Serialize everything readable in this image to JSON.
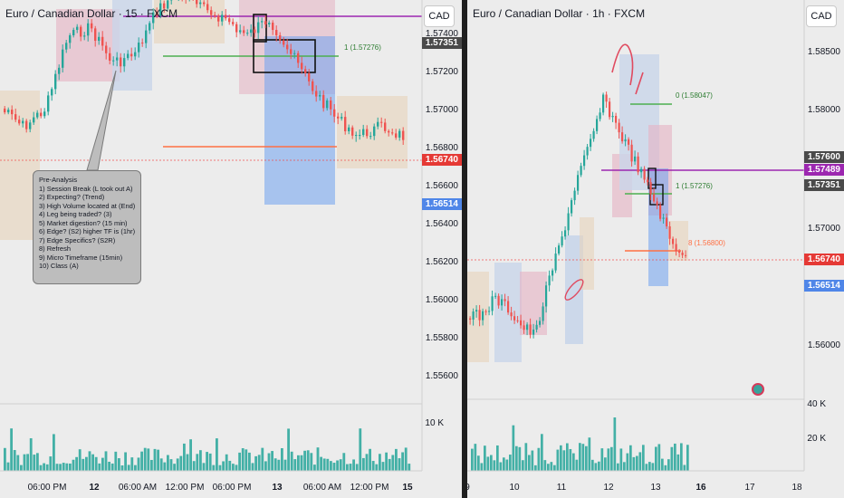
{
  "left_chart": {
    "title": "Euro / Canadian Dollar · 15 · FXCM",
    "currency": "CAD",
    "price_axis": [
      "1.57400",
      "1.57200",
      "1.57000",
      "1.56800",
      "1.56600",
      "1.56400",
      "1.56200",
      "1.56000",
      "1.55800",
      "1.55600"
    ],
    "price_tags": [
      {
        "text": "1.57351",
        "color": "#4a4a4a"
      },
      {
        "text": "1.56740",
        "color": "#e53935"
      },
      {
        "text": "1.56514",
        "color": "#4f86e8"
      }
    ],
    "time_axis": [
      {
        "text": "06:00 PM",
        "bold": false
      },
      {
        "text": "12",
        "bold": true
      },
      {
        "text": "06:00 AM",
        "bold": false
      },
      {
        "text": "12:00 PM",
        "bold": false
      },
      {
        "text": "06:00 PM",
        "bold": false
      },
      {
        "text": "13",
        "bold": true
      },
      {
        "text": "06:00 AM",
        "bold": false
      },
      {
        "text": "12:00 PM",
        "bold": false
      },
      {
        "text": "15",
        "bold": true
      }
    ],
    "volume_label": "10 K",
    "level_annotation": "1 (1.57276)",
    "note_lines": [
      "Pre-Analysis",
      "1) Session Break (L took out A)",
      "2) Expecting? (Trend)",
      "3) High Volume located at (End)",
      "4) Leg being traded? (3)",
      "5) Market digestion? (15 min)",
      "6) Edge? (S2) higher TF is (1hr)",
      "7) Edge Specifics? (S2R)",
      "8) Refresh",
      "9) Micro Timeframe (15min)",
      "10) Class (A)"
    ]
  },
  "right_chart": {
    "title": "Euro / Canadian Dollar · 1h · FXCM",
    "currency": "CAD",
    "price_axis": [
      "1.58500",
      "1.58000",
      "1.57000",
      "1.56000"
    ],
    "price_tags": [
      {
        "text": "1.57600",
        "color": "#4a4a4a"
      },
      {
        "text": "1.57489",
        "color": "#9c27b0"
      },
      {
        "text": "1.57351",
        "color": "#4a4a4a"
      },
      {
        "text": "1.56740",
        "color": "#e53935"
      },
      {
        "text": "1.56514",
        "color": "#4f86e8"
      }
    ],
    "time_axis": [
      {
        "text": "9",
        "bold": false
      },
      {
        "text": "10",
        "bold": false
      },
      {
        "text": "11",
        "bold": false
      },
      {
        "text": "12",
        "bold": false
      },
      {
        "text": "13",
        "bold": false
      },
      {
        "text": "16",
        "bold": false
      },
      {
        "text": "17",
        "bold": false
      },
      {
        "text": "18",
        "bold": false
      }
    ],
    "volume_labels": [
      "40 K",
      "20 K"
    ],
    "annotations": {
      "level_zero": "0 (1.58047)",
      "level_one": "1 (1.57276)",
      "level_orange": "8 (1.56800)"
    }
  },
  "colors": {
    "bull": "#26a69a",
    "bear": "#ef5350",
    "purple_line": "#9c27b0",
    "green_line": "#4caf50",
    "orange_line": "#ff7043",
    "blue_zone": "#6fa3f0",
    "pink_zone": "#e6b3c3",
    "tan_zone": "#e8d3bb"
  },
  "icons": {
    "nav_button": "target-icon"
  }
}
